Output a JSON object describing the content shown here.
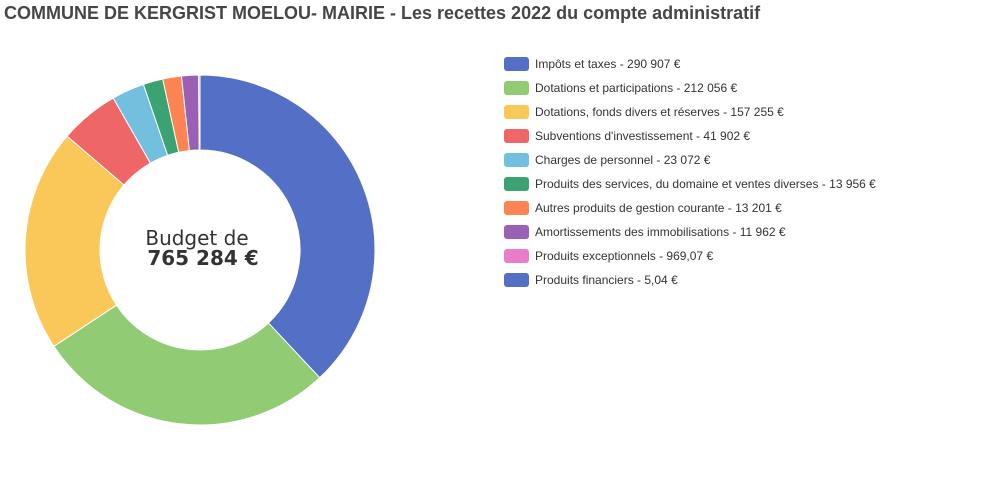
{
  "title": "COMMUNE DE KERGRIST MOELOU- MAIRIE - Les recettes 2022 du compte administratif",
  "center": {
    "line1": "Budget de",
    "line2": "765 284 €"
  },
  "chart_data": {
    "type": "pie",
    "variant": "donut",
    "legend_position": "right",
    "categories": [
      "Impôts et taxes",
      "Dotations et participations",
      "Dotations, fonds divers et réserves",
      "Subventions d'investissement",
      "Charges de personnel",
      "Produits des services, du domaine et ventes diverses",
      "Autres produits de gestion courante",
      "Amortissements des immobilisations",
      "Produits exceptionnels",
      "Produits financiers"
    ],
    "values": [
      290907,
      212056,
      157255,
      41902,
      23072,
      13956,
      13201,
      11962,
      969.07,
      5.04
    ],
    "legend_labels": [
      "Impôts et taxes - 290 907 €",
      "Dotations et participations - 212 056 €",
      "Dotations, fonds divers et réserves - 157 255 €",
      "Subventions d'investissement - 41 902 €",
      "Charges de personnel - 23 072 €",
      "Produits des services, du domaine et ventes diverses - 13 956 €",
      "Autres produits de gestion courante - 13 201 €",
      "Amortissements des immobilisations - 11 962 €",
      "Produits exceptionnels - 969,07 €",
      "Produits financiers - 5,04 €"
    ],
    "colors": [
      "#5470c6",
      "#91cc75",
      "#fac858",
      "#ee6666",
      "#73c0de",
      "#3ba272",
      "#fc8452",
      "#9a60b4",
      "#ea7ccc",
      "#5470c6"
    ]
  }
}
